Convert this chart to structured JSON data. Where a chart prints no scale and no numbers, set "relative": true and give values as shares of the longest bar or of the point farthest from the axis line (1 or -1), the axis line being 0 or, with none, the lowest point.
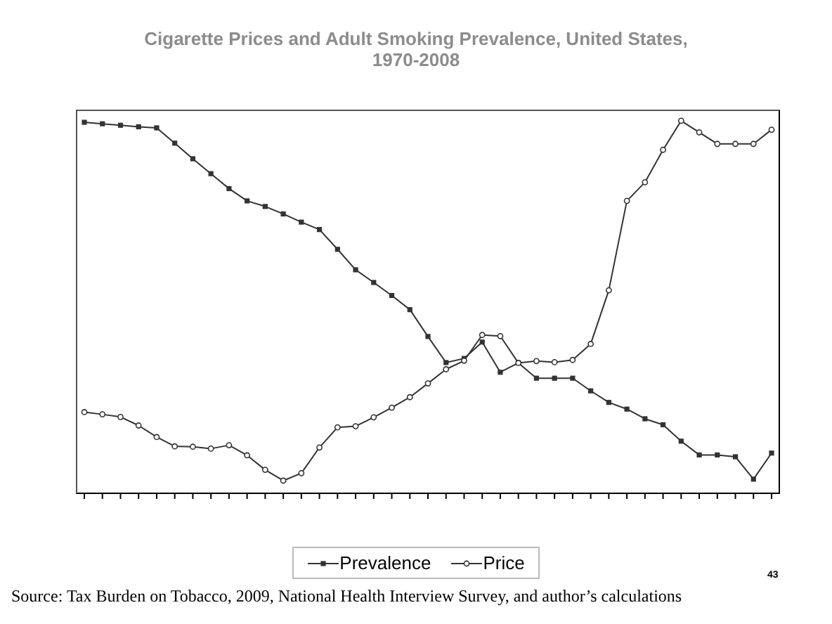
{
  "chart_data": {
    "type": "line",
    "title": "Cigarette Prices and Adult Smoking Prevalence, United States, 1970-2008",
    "relative": true,
    "legend": "bottom",
    "categories": [
      null,
      null,
      null,
      null,
      null,
      null,
      null,
      null,
      null,
      null,
      null,
      null,
      null,
      null,
      null,
      null,
      null,
      null,
      null,
      null,
      null,
      null,
      null,
      null,
      null,
      null,
      null,
      null,
      null,
      null,
      null,
      null,
      null,
      null,
      null,
      null,
      null,
      null,
      null
    ],
    "series": [
      {
        "name": "Prevalence",
        "color": "#333333",
        "marker": "square",
        "values": [
          0.996,
          0.992,
          0.988,
          0.984,
          0.981,
          0.94,
          0.898,
          0.858,
          0.818,
          0.785,
          0.77,
          0.75,
          0.728,
          0.708,
          0.655,
          0.6,
          0.566,
          0.531,
          0.493,
          0.421,
          0.351,
          0.362,
          0.406,
          0.325,
          0.35,
          0.309,
          0.309,
          0.309,
          0.275,
          0.244,
          0.226,
          0.2,
          0.184,
          0.14,
          0.103,
          0.103,
          0.098,
          0.038,
          0.108
        ]
      },
      {
        "name": "Price",
        "color": "#333333",
        "marker": "circle",
        "values": [
          0.218,
          0.212,
          0.205,
          0.182,
          0.151,
          0.126,
          0.125,
          0.12,
          0.129,
          0.102,
          0.063,
          0.034,
          0.054,
          0.123,
          0.177,
          0.18,
          0.204,
          0.23,
          0.258,
          0.295,
          0.333,
          0.356,
          0.425,
          0.422,
          0.35,
          0.355,
          0.352,
          0.358,
          0.401,
          0.545,
          0.785,
          0.835,
          0.922,
          1,
          0.969,
          0.938,
          0.938,
          0.938,
          0.976
        ]
      }
    ],
    "annotations": [
      "Source: Tax Burden on Tobacco, 2009, National Health Interview Survey, and author’s calculations",
      "43"
    ]
  }
}
